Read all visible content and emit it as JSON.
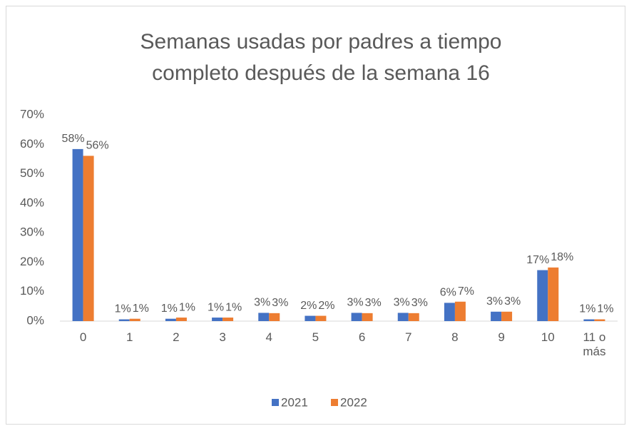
{
  "chart_data": {
    "type": "bar",
    "title": "Semanas usadas por padres a tiempo completo después de la semana 16",
    "categories": [
      "0",
      "1",
      "2",
      "3",
      "4",
      "5",
      "6",
      "7",
      "8",
      "9",
      "10",
      "11 o más"
    ],
    "series": [
      {
        "name": "2021",
        "color": "#4472c4",
        "values": [
          58.4,
          0.6,
          0.8,
          1.2,
          2.8,
          1.8,
          2.8,
          2.8,
          6.2,
          3.2,
          17.3,
          0.6
        ],
        "value_labels": [
          "58%",
          "1%",
          "1%",
          "1%",
          "3%",
          "2%",
          "3%",
          "3%",
          "6%",
          "3%",
          "17%",
          "1%"
        ]
      },
      {
        "name": "2022",
        "color": "#ed7d31",
        "values": [
          56.1,
          0.8,
          1.2,
          1.2,
          2.7,
          1.8,
          2.7,
          2.7,
          6.6,
          3.2,
          18.2,
          0.6
        ],
        "value_labels": [
          "56%",
          "1%",
          "1%",
          "1%",
          "3%",
          "2%",
          "3%",
          "3%",
          "7%",
          "3%",
          "18%",
          "1%"
        ]
      }
    ],
    "ylim": [
      0,
      70
    ],
    "yticks": [
      {
        "value": 0,
        "label": "0%"
      },
      {
        "value": 10,
        "label": "10%"
      },
      {
        "value": 20,
        "label": "20%"
      },
      {
        "value": 30,
        "label": "30%"
      },
      {
        "value": 40,
        "label": "40%"
      },
      {
        "value": 50,
        "label": "50%"
      },
      {
        "value": 60,
        "label": "60%"
      },
      {
        "value": 70,
        "label": "70%"
      }
    ],
    "legend": "bottom"
  }
}
